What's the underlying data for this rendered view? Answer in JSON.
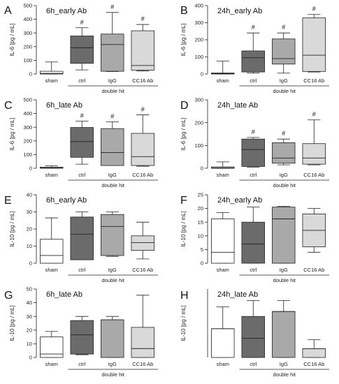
{
  "colors": {
    "sham": "#ffffff",
    "ctrl": "#6b6b6b",
    "IgG": "#a9a9a9",
    "CC16 Ab": "#d9d9d9",
    "stroke": "#222222"
  },
  "chart_data": [
    {
      "type": "boxplot",
      "letter": "A",
      "title": "6h_early Ab",
      "ylabel": "IL-6 [pg / mL]",
      "ylim": [
        0,
        500
      ],
      "yticks": [
        0,
        100,
        200,
        300,
        400,
        500
      ],
      "categories": [
        "sham",
        "ctrl",
        "IgG",
        "CC16 Ab"
      ],
      "group_label": "double hit",
      "boxes": [
        {
          "min": 0,
          "q1": 0,
          "median": 5,
          "q3": 20,
          "max": 88
        },
        {
          "min": 30,
          "q1": 78,
          "median": 192,
          "q3": 278,
          "max": 338
        },
        {
          "min": 18,
          "q1": 20,
          "median": 215,
          "q3": 292,
          "max": 450
        },
        {
          "min": 22,
          "q1": 28,
          "median": 62,
          "q3": 316,
          "max": 362
        }
      ],
      "annotations": [
        "",
        "#",
        "#",
        "#"
      ]
    },
    {
      "type": "boxplot",
      "letter": "B",
      "title": "24h_early Ab",
      "ylabel": "IL-6 [pg / mL]",
      "ylim": [
        0,
        400
      ],
      "yticks": [
        0,
        100,
        200,
        300,
        400
      ],
      "categories": [
        "sham",
        "ctrl",
        "IgG",
        "CC16 Ab"
      ],
      "group_label": "double hit",
      "boxes": [
        {
          "min": 0,
          "q1": 0,
          "median": 2,
          "q3": 6,
          "max": 75
        },
        {
          "min": 5,
          "q1": 12,
          "median": 95,
          "q3": 135,
          "max": 240
        },
        {
          "min": 5,
          "q1": 58,
          "median": 90,
          "q3": 205,
          "max": 240
        },
        {
          "min": 12,
          "q1": 15,
          "median": 110,
          "q3": 328,
          "max": 348
        }
      ],
      "annotations": [
        "",
        "#",
        "#",
        "#"
      ]
    },
    {
      "type": "boxplot",
      "letter": "C",
      "title": "6h_late Ab",
      "ylabel": "IL-6 [pg / mL]",
      "ylim": [
        0,
        500
      ],
      "yticks": [
        0,
        100,
        200,
        300,
        400,
        500
      ],
      "categories": [
        "sham",
        "ctrl",
        "IgG",
        "CC16 Ab"
      ],
      "group_label": "double hit",
      "boxes": [
        {
          "min": 0,
          "q1": 0,
          "median": 4,
          "q3": 8,
          "max": 18
        },
        {
          "min": 30,
          "q1": 80,
          "median": 195,
          "q3": 298,
          "max": 345
        },
        {
          "min": 20,
          "q1": 20,
          "median": 115,
          "q3": 290,
          "max": 340
        },
        {
          "min": 15,
          "q1": 20,
          "median": 85,
          "q3": 255,
          "max": 390
        }
      ],
      "annotations": [
        "",
        "#",
        "#",
        "#"
      ]
    },
    {
      "type": "boxplot",
      "letter": "D",
      "title": "24h_late Ab",
      "ylabel": "IL-6 [pg / mL]",
      "ylim": [
        0,
        300
      ],
      "yticks": [
        0,
        100,
        200,
        300
      ],
      "categories": [
        "sham",
        "ctrl",
        "IgG",
        "CC16 Ab"
      ],
      "group_label": "double hit",
      "boxes": [
        {
          "min": 0,
          "q1": 0,
          "median": 2,
          "q3": 6,
          "max": 28
        },
        {
          "min": 5,
          "q1": 8,
          "median": 82,
          "q3": 128,
          "max": 135
        },
        {
          "min": 15,
          "q1": 22,
          "median": 45,
          "q3": 112,
          "max": 128
        },
        {
          "min": 15,
          "q1": 18,
          "median": 45,
          "q3": 108,
          "max": 212
        }
      ],
      "annotations": [
        "",
        "#",
        "#",
        "#"
      ]
    },
    {
      "type": "boxplot",
      "letter": "E",
      "title": "6h_early Ab",
      "ylabel": "IL-10 [pg / mL]",
      "ylim": [
        0,
        40
      ],
      "yticks": [
        0,
        10,
        20,
        30,
        40
      ],
      "categories": [
        "sham",
        "ctrl",
        "IgG",
        "CC16 Ab"
      ],
      "group_label": "double hit",
      "boxes": [
        {
          "min": 0,
          "q1": 0,
          "median": 4.5,
          "q3": 14,
          "max": 26.5
        },
        {
          "min": 2,
          "q1": 2,
          "median": 17,
          "q3": 27,
          "max": 30
        },
        {
          "min": 4,
          "q1": 4.5,
          "median": 21.5,
          "q3": 28.5,
          "max": 30
        },
        {
          "min": 2.5,
          "q1": 7.5,
          "median": 12,
          "q3": 16,
          "max": 24
        }
      ],
      "annotations": [
        "",
        "",
        "",
        ""
      ]
    },
    {
      "type": "boxplot",
      "letter": "F",
      "title": "24h_early Ab",
      "ylabel": "IL-10 [pg / mL]",
      "ylim": [
        0,
        25
      ],
      "yticks": [
        0,
        5,
        10,
        15,
        20,
        25
      ],
      "categories": [
        "sham",
        "ctrl",
        "IgG",
        "CC16 Ab"
      ],
      "group_label": "double hit",
      "boxes": [
        {
          "min": 0,
          "q1": 0,
          "median": 4,
          "q3": 16.2,
          "max": 18.5
        },
        {
          "min": 0,
          "q1": 0,
          "median": 7,
          "q3": 15,
          "max": 20.5
        },
        {
          "min": 0,
          "q1": 0,
          "median": 16.2,
          "q3": 20.5,
          "max": 20.8
        },
        {
          "min": 4,
          "q1": 6,
          "median": 12,
          "q3": 18,
          "max": 20
        }
      ],
      "annotations": [
        "",
        "",
        "",
        ""
      ]
    },
    {
      "type": "boxplot",
      "letter": "G",
      "title": "6h_late Ab",
      "ylabel": "IL-10 [pg / mL]",
      "ylim": [
        0,
        50
      ],
      "yticks": [
        0,
        10,
        20,
        30,
        40,
        50
      ],
      "categories": [
        "sham",
        "ctrl",
        "IgG",
        "CC16 Ab"
      ],
      "group_label": "double hit",
      "boxes": [
        {
          "min": 0,
          "q1": 0,
          "median": 2.5,
          "q3": 15,
          "max": 19
        },
        {
          "min": 2,
          "q1": 2.5,
          "median": 16.5,
          "q3": 27,
          "max": 30
        },
        {
          "min": 0,
          "q1": 0,
          "median": 27.5,
          "q3": 27.5,
          "max": 30
        },
        {
          "min": 0,
          "q1": 0,
          "median": 6.5,
          "q3": 22,
          "max": 45.5
        }
      ],
      "annotations": [
        "",
        "",
        "",
        ""
      ]
    },
    {
      "type": "boxplot",
      "letter": "H",
      "title": "24h_late Ab",
      "ylabel": "IL-10 [pg / mL]",
      "ylim": [
        0,
        25
      ],
      "yticks": [],
      "categories": [
        "sham",
        "ctrl",
        "IgG",
        "CC16 Ab"
      ],
      "group_label": "double hit",
      "boxes": [
        {
          "min": 0,
          "q1": 0,
          "median": 10.5,
          "q3": 10.5,
          "max": 18.5
        },
        {
          "min": 0,
          "q1": 0,
          "median": 7,
          "q3": 15,
          "max": 20.8
        },
        {
          "min": 0,
          "q1": 0,
          "median": 16.8,
          "q3": 16.8,
          "max": 20.8
        },
        {
          "min": 0,
          "q1": 0,
          "median": 3.2,
          "q3": 3.2,
          "max": 6.5
        }
      ],
      "annotations": [
        "",
        "",
        "",
        ""
      ]
    }
  ]
}
